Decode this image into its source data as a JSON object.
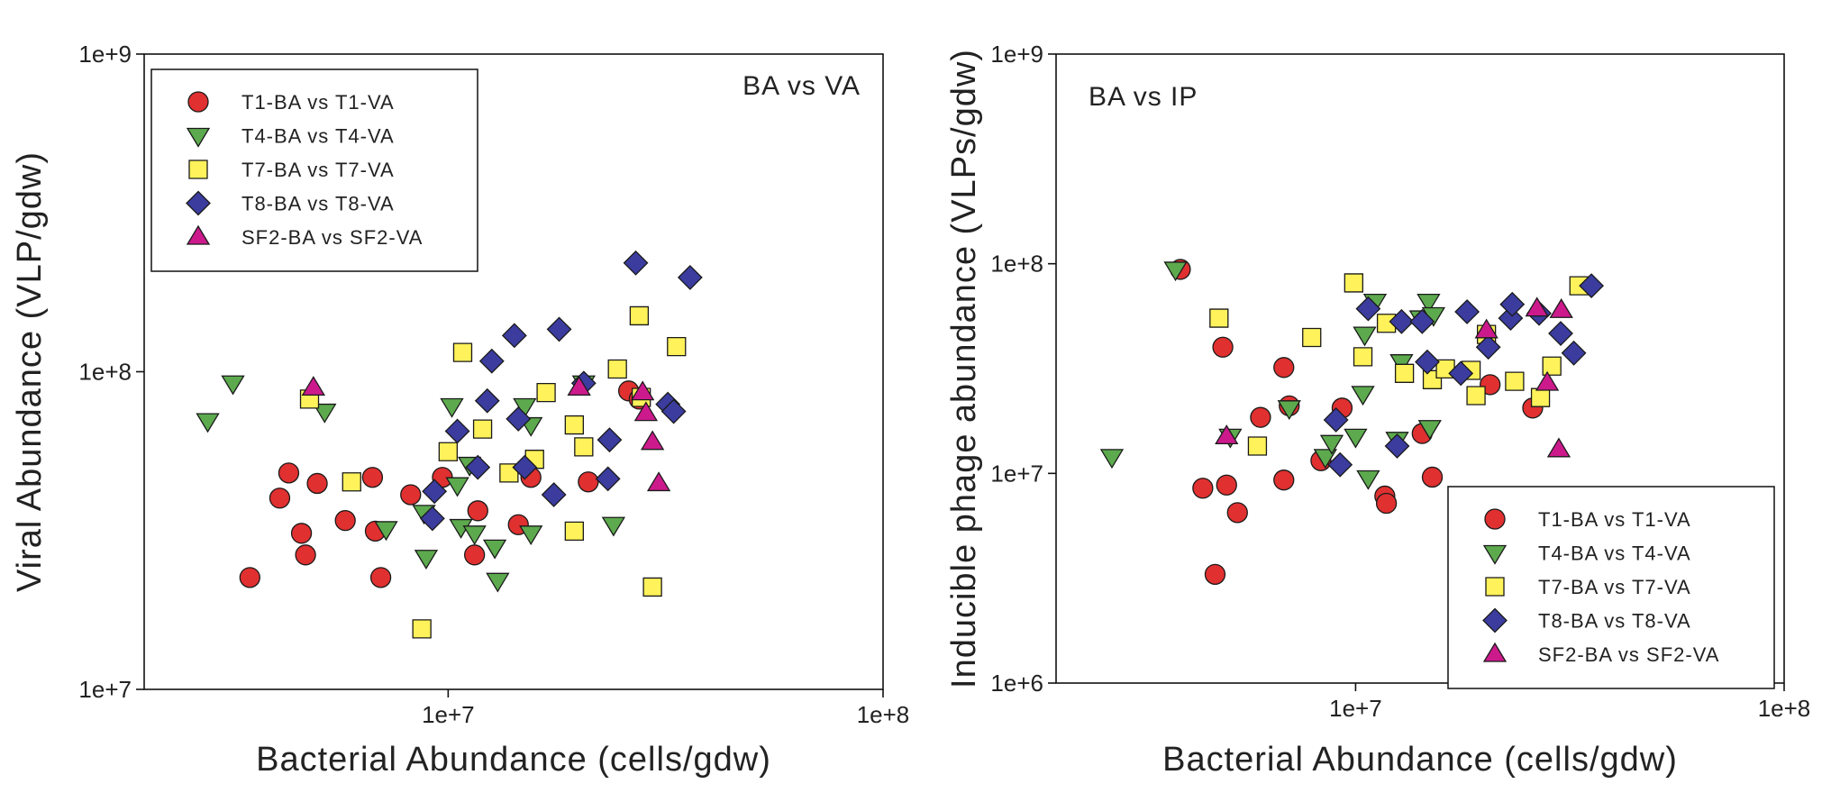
{
  "colors": {
    "T1": "#e03030",
    "T4": "#5daa4e",
    "T7": "#fff25a",
    "T8": "#3b3c9e",
    "SF2": "#cc1a8c"
  },
  "chart_data": [
    {
      "type": "scatter",
      "scale": "log-log",
      "title": "BA vs VA",
      "xlabel": "Bacterial Abundance (cells/gdw)",
      "ylabel": "Viral Abundance (VLP/gdw)",
      "xlim": [
        2000000,
        100000000
      ],
      "ylim": [
        10000000,
        1000000000
      ],
      "xticks": [
        {
          "value": 10000000,
          "label": "1e+7"
        },
        {
          "value": 100000000,
          "label": "1e+8"
        }
      ],
      "yticks": [
        {
          "value": 10000000,
          "label": "1e+7"
        },
        {
          "value": 100000000,
          "label": "1e+8"
        },
        {
          "value": 1000000000,
          "label": "1e+9"
        }
      ],
      "legend_position": "top-left",
      "series": [
        {
          "name": "T1-BA vs T1-VA",
          "key": "T1",
          "marker": "circle",
          "points": [
            [
              3500000,
              22500000
            ],
            [
              4100000,
              40000000
            ],
            [
              4300000,
              48000000
            ],
            [
              4600000,
              31000000
            ],
            [
              4700000,
              26500000
            ],
            [
              5000000,
              44500000
            ],
            [
              5800000,
              34000000
            ],
            [
              6700000,
              46500000
            ],
            [
              6800000,
              31500000
            ],
            [
              7000000,
              22500000
            ],
            [
              8200000,
              41000000
            ],
            [
              9700000,
              46500000
            ],
            [
              11500000,
              26500000
            ],
            [
              11700000,
              36500000
            ],
            [
              14500000,
              33000000
            ],
            [
              15500000,
              46500000
            ],
            [
              21000000,
              45000000
            ],
            [
              26000000,
              87000000
            ],
            [
              27500000,
              82000000
            ]
          ]
        },
        {
          "name": "T4-BA vs T4-VA",
          "key": "T4",
          "marker": "triangle-down",
          "points": [
            [
              2800000,
              70000000
            ],
            [
              3200000,
              92000000
            ],
            [
              5200000,
              75000000
            ],
            [
              7200000,
              32000000
            ],
            [
              8800000,
              36000000
            ],
            [
              8900000,
              26000000
            ],
            [
              10200000,
              78000000
            ],
            [
              10500000,
              44000000
            ],
            [
              10700000,
              32500000
            ],
            [
              11200000,
              51000000
            ],
            [
              11500000,
              31000000
            ],
            [
              12800000,
              28000000
            ],
            [
              13000000,
              22000000
            ],
            [
              15000000,
              78000000
            ],
            [
              15500000,
              68000000
            ],
            [
              15500000,
              31000000
            ],
            [
              20500000,
              92000000
            ],
            [
              24000000,
              33000000
            ]
          ]
        },
        {
          "name": "T7-BA vs T7-VA",
          "key": "T7",
          "marker": "square",
          "points": [
            [
              4800000,
              82000000
            ],
            [
              6000000,
              45000000
            ],
            [
              8700000,
              15500000
            ],
            [
              10000000,
              56000000
            ],
            [
              10800000,
              115000000
            ],
            [
              12000000,
              66000000
            ],
            [
              13800000,
              48000000
            ],
            [
              15800000,
              53000000
            ],
            [
              16800000,
              86000000
            ],
            [
              19500000,
              31500000
            ],
            [
              19500000,
              68000000
            ],
            [
              20500000,
              58000000
            ],
            [
              24500000,
              102000000
            ],
            [
              27500000,
              150000000
            ],
            [
              27800000,
              83000000
            ],
            [
              29500000,
              21000000
            ],
            [
              33500000,
              120000000
            ]
          ]
        },
        {
          "name": "T8-BA vs T8-VA",
          "key": "T8",
          "marker": "diamond",
          "points": [
            [
              9200000,
              34500000
            ],
            [
              9300000,
              42000000
            ],
            [
              10500000,
              65000000
            ],
            [
              11700000,
              50000000
            ],
            [
              12300000,
              81000000
            ],
            [
              12600000,
              108000000
            ],
            [
              14200000,
              130000000
            ],
            [
              14500000,
              71000000
            ],
            [
              15000000,
              50000000
            ],
            [
              17500000,
              41000000
            ],
            [
              18000000,
              136000000
            ],
            [
              20500000,
              92000000
            ],
            [
              23300000,
              46000000
            ],
            [
              23500000,
              61000000
            ],
            [
              27000000,
              220000000
            ],
            [
              32000000,
              79000000
            ],
            [
              33000000,
              75000000
            ],
            [
              36000000,
              198000000
            ]
          ]
        },
        {
          "name": "SF2-BA vs SF2-VA",
          "key": "SF2",
          "marker": "triangle-up",
          "points": [
            [
              4900000,
              89000000
            ],
            [
              20000000,
              89000000
            ],
            [
              28000000,
              86000000
            ],
            [
              28500000,
              74000000
            ],
            [
              29500000,
              60000000
            ],
            [
              30500000,
              44500000
            ]
          ]
        }
      ]
    },
    {
      "type": "scatter",
      "scale": "log-log",
      "title": "BA vs IP",
      "xlabel": "Bacterial Abundance (cells/gdw)",
      "ylabel": "Inducible phage abundance (VLPs/gdw)",
      "xlim": [
        2000000,
        100000000
      ],
      "ylim": [
        1000000,
        1000000000
      ],
      "xticks": [
        {
          "value": 10000000,
          "label": "1e+7"
        },
        {
          "value": 100000000,
          "label": "1e+8"
        }
      ],
      "yticks": [
        {
          "value": 1000000,
          "label": "1e+6"
        },
        {
          "value": 10000000,
          "label": "1e+7"
        },
        {
          "value": 100000000,
          "label": "1e+8"
        },
        {
          "value": 1000000000,
          "label": "1e+9"
        }
      ],
      "legend_position": "bottom-right",
      "series": [
        {
          "name": "T1-BA vs T1-VA",
          "key": "T1",
          "marker": "circle",
          "points": [
            [
              3900000,
              94000000
            ],
            [
              4400000,
              8500000
            ],
            [
              4700000,
              3300000
            ],
            [
              4900000,
              40000000
            ],
            [
              5000000,
              8800000
            ],
            [
              5300000,
              6500000
            ],
            [
              6000000,
              18500000
            ],
            [
              6800000,
              32000000
            ],
            [
              6800000,
              9300000
            ],
            [
              7000000,
              21000000
            ],
            [
              8300000,
              11500000
            ],
            [
              9300000,
              20500000
            ],
            [
              11700000,
              7800000
            ],
            [
              11800000,
              7200000
            ],
            [
              14300000,
              15500000
            ],
            [
              15100000,
              9600000
            ],
            [
              20600000,
              26500000
            ],
            [
              25900000,
              20500000
            ]
          ]
        },
        {
          "name": "T4-BA vs T4-VA",
          "key": "T4",
          "marker": "triangle-down",
          "points": [
            [
              2700000,
              12000000
            ],
            [
              3800000,
              94000000
            ],
            [
              5100000,
              15000000
            ],
            [
              7000000,
              20500000
            ],
            [
              8500000,
              12000000
            ],
            [
              8800000,
              14000000
            ],
            [
              10000000,
              15000000
            ],
            [
              10400000,
              24000000
            ],
            [
              10500000,
              46000000
            ],
            [
              10700000,
              9500000
            ],
            [
              11100000,
              66000000
            ],
            [
              12500000,
              14500000
            ],
            [
              12800000,
              34000000
            ],
            [
              14200000,
              55000000
            ],
            [
              14800000,
              66000000
            ],
            [
              14900000,
              16500000
            ],
            [
              15200000,
              57000000
            ]
          ]
        },
        {
          "name": "T7-BA vs T7-VA",
          "key": "T7",
          "marker": "square",
          "points": [
            [
              4800000,
              55000000
            ],
            [
              5900000,
              13500000
            ],
            [
              7900000,
              44500000
            ],
            [
              9900000,
              81000000
            ],
            [
              10400000,
              36000000
            ],
            [
              11800000,
              52000000
            ],
            [
              13000000,
              30000000
            ],
            [
              15100000,
              28000000
            ],
            [
              16200000,
              31500000
            ],
            [
              18600000,
              31000000
            ],
            [
              19100000,
              23500000
            ],
            [
              20200000,
              46000000
            ],
            [
              23500000,
              27500000
            ],
            [
              27000000,
              23000000
            ],
            [
              28700000,
              32500000
            ],
            [
              33200000,
              78500000
            ]
          ]
        },
        {
          "name": "T8-BA vs T8-VA",
          "key": "T8",
          "marker": "diamond",
          "points": [
            [
              9000000,
              18000000
            ],
            [
              9200000,
              11000000
            ],
            [
              10700000,
              61000000
            ],
            [
              12500000,
              13500000
            ],
            [
              12800000,
              53000000
            ],
            [
              14300000,
              53000000
            ],
            [
              14700000,
              34000000
            ],
            [
              17600000,
              30000000
            ],
            [
              18200000,
              59000000
            ],
            [
              20400000,
              40000000
            ],
            [
              23000000,
              55000000
            ],
            [
              23200000,
              64000000
            ],
            [
              26800000,
              58000000
            ],
            [
              30100000,
              46500000
            ],
            [
              32300000,
              37500000
            ],
            [
              35500000,
              78500000
            ]
          ]
        },
        {
          "name": "SF2-BA vs SF2-VA",
          "key": "SF2",
          "marker": "triangle-up",
          "points": [
            [
              5000000,
              15000000
            ],
            [
              20200000,
              48000000
            ],
            [
              26500000,
              61000000
            ],
            [
              28000000,
              27000000
            ],
            [
              29800000,
              13000000
            ],
            [
              30200000,
              60000000
            ]
          ]
        }
      ]
    }
  ]
}
